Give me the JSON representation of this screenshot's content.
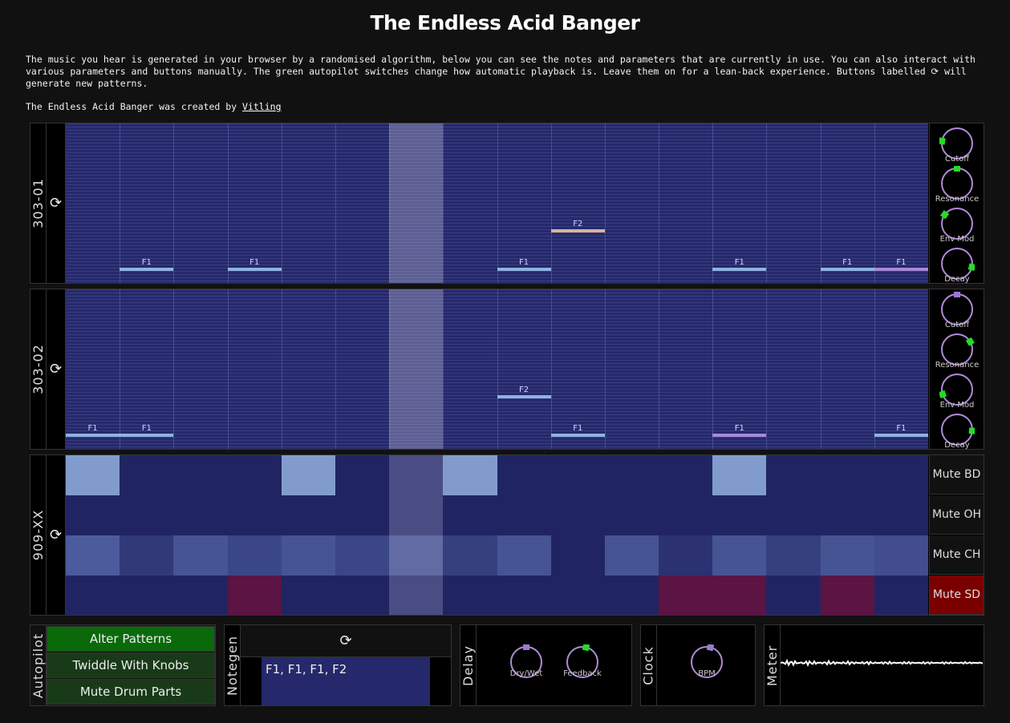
{
  "title": "The Endless Acid Banger",
  "intro": {
    "text": "The music you hear is generated in your browser by a randomised algorithm, below you can see the notes and parameters that are currently in use. You can also interact with various parameters and buttons manually. The green autopilot switches change how automatic playback is. Leave them on for a lean-back experience. Buttons labelled ⟳ will generate new patterns.",
    "credit_prefix": "The Endless Acid Banger was created by ",
    "credit_link": "Vitling"
  },
  "refresh_symbol": "⟳",
  "colors": {
    "background": "#111111",
    "grid": "#26296a",
    "note_default": "#8fb2e0",
    "note_accent": "#a78ad6",
    "note_slide": "#d8b49a",
    "knob_ring": "#b08ad8",
    "knob_marker_green": "#22dd22",
    "knob_marker_purple": "#9a7acf",
    "autopilot_on": "#0a6a0a",
    "autopilot_off": "#183a18",
    "mute_active": "#7a0000"
  },
  "synths": [
    {
      "name": "303-01",
      "notes": [
        {
          "step": 1,
          "label": "F1",
          "row": 0,
          "kind": "default"
        },
        {
          "step": 3,
          "label": "F1",
          "row": 0,
          "kind": "default"
        },
        {
          "step": 8,
          "label": "F1",
          "row": 0,
          "kind": "default"
        },
        {
          "step": 9,
          "label": "F2",
          "row": 1,
          "kind": "slide"
        },
        {
          "step": 12,
          "label": "F1",
          "row": 0,
          "kind": "default"
        },
        {
          "step": 14,
          "label": "F1",
          "row": 0,
          "kind": "default"
        },
        {
          "step": 15,
          "label": "F1",
          "row": 0,
          "kind": "accent"
        }
      ],
      "knobs": [
        {
          "label": "Cutoff",
          "value": 0.2,
          "marker": "green"
        },
        {
          "label": "Resonance",
          "value": 0.5,
          "marker": "green"
        },
        {
          "label": "Env Mod",
          "value": 0.3,
          "marker": "green"
        },
        {
          "label": "Decay",
          "value": 0.88,
          "marker": "green"
        }
      ]
    },
    {
      "name": "303-02",
      "notes": [
        {
          "step": 0,
          "label": "F1",
          "row": 0,
          "kind": "default"
        },
        {
          "step": 1,
          "label": "F1",
          "row": 0,
          "kind": "default"
        },
        {
          "step": 8,
          "label": "F2",
          "row": 1,
          "kind": "default"
        },
        {
          "step": 9,
          "label": "F1",
          "row": 0,
          "kind": "default"
        },
        {
          "step": 12,
          "label": "F1",
          "row": 0,
          "kind": "accent"
        },
        {
          "step": 15,
          "label": "F1",
          "row": 0,
          "kind": "default"
        }
      ],
      "knobs": [
        {
          "label": "Cutoff",
          "value": 0.5,
          "marker": "purple"
        },
        {
          "label": "Resonance",
          "value": 0.72,
          "marker": "green"
        },
        {
          "label": "Env Mod",
          "value": 0.1,
          "marker": "green"
        },
        {
          "label": "Decay",
          "value": 0.85,
          "marker": "green"
        }
      ]
    }
  ],
  "playhead_step": 6,
  "drums": {
    "name": "909-XX",
    "rows": [
      {
        "mute_label": "Mute BD",
        "muted": false,
        "kind": "bd",
        "steps": [
          1,
          0,
          0,
          0,
          1,
          0,
          0,
          1,
          0,
          0,
          0,
          0,
          1,
          0,
          0,
          0
        ]
      },
      {
        "mute_label": "Mute OH",
        "muted": false,
        "kind": "oh",
        "steps": [
          0,
          0,
          0,
          0,
          0,
          0,
          0,
          0,
          0,
          0,
          0,
          0,
          0,
          0,
          0,
          0
        ]
      },
      {
        "mute_label": "Mute CH",
        "muted": false,
        "kind": "ch",
        "steps": [
          0.8,
          0.3,
          0.7,
          0.5,
          0.7,
          0.5,
          0.6,
          0.4,
          0.7,
          0,
          0.7,
          0.2,
          0.7,
          0.4,
          0.7,
          0.6
        ]
      },
      {
        "mute_label": "Mute SD",
        "muted": true,
        "kind": "sd",
        "steps": [
          0,
          0,
          0,
          1,
          0,
          0,
          0,
          0,
          0,
          0,
          0,
          1,
          1,
          0,
          1,
          0
        ]
      }
    ]
  },
  "autopilot": {
    "label": "Autopilot",
    "buttons": [
      {
        "label": "Alter Patterns",
        "on": true
      },
      {
        "label": "Twiddle With Knobs",
        "on": false
      },
      {
        "label": "Mute Drum Parts",
        "on": false
      }
    ]
  },
  "notegen": {
    "label": "Notegen",
    "notes_text": "F1, F1, F1, F2"
  },
  "delay": {
    "label": "Delay",
    "knobs": [
      {
        "label": "Dry/Wet",
        "value": 0.5,
        "marker": "purple"
      },
      {
        "label": "Feedback",
        "value": 0.55,
        "marker": "green"
      }
    ]
  },
  "clock": {
    "label": "Clock",
    "knobs": [
      {
        "label": "BPM",
        "value": 0.55,
        "marker": "purple"
      }
    ]
  },
  "meter": {
    "label": "Meter"
  }
}
